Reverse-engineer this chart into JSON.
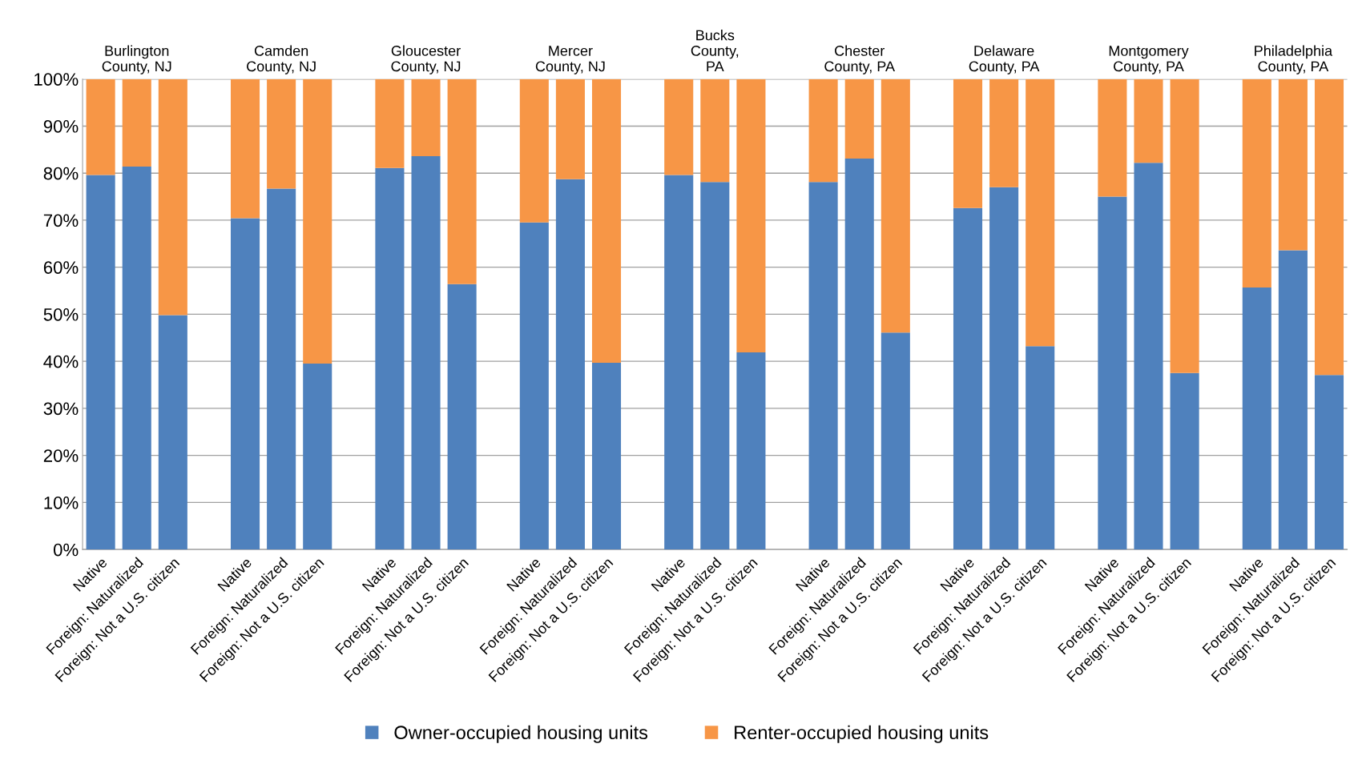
{
  "chart_data": {
    "type": "bar",
    "stacked": true,
    "categories": [
      "Native",
      "Foreign: Naturalized",
      "Foreign: Not a U.S. citizen",
      null,
      "Native",
      "Foreign: Naturalized",
      "Foreign: Not a U.S. citizen",
      null,
      "Native",
      "Foreign: Naturalized",
      "Foreign: Not a U.S. citizen",
      null,
      "Native",
      "Foreign: Naturalized",
      "Foreign: Not a U.S. citizen",
      null,
      "Native",
      "Foreign: Naturalized",
      "Foreign: Not a U.S. citizen",
      null,
      "Native",
      "Foreign: Naturalized",
      "Foreign: Not a U.S. citizen",
      null,
      "Native",
      "Foreign: Naturalized",
      "Foreign: Not a U.S. citizen",
      null,
      "Native",
      "Foreign: Naturalized",
      "Foreign: Not a U.S. citizen",
      null,
      "Native",
      "Foreign: Naturalized",
      "Foreign: Not a U.S. citizen"
    ],
    "series": [
      {
        "name": "Owner-occupied housing units",
        "color": "#4f81bd",
        "values": [
          79.6,
          81.4,
          49.8,
          null,
          70.4,
          76.7,
          39.5,
          null,
          81.1,
          83.6,
          56.4,
          null,
          69.5,
          78.7,
          39.7,
          null,
          79.6,
          78.1,
          41.9,
          null,
          78.1,
          83.1,
          46.1,
          null,
          72.6,
          77.0,
          43.2,
          null,
          75.0,
          82.2,
          37.5,
          null,
          55.7,
          63.6,
          37.1
        ]
      },
      {
        "name": "Renter-occupied housing units",
        "color": "#f79646",
        "values": [
          20.4,
          18.6,
          50.2,
          null,
          29.6,
          23.3,
          60.5,
          null,
          18.9,
          16.4,
          43.6,
          null,
          30.5,
          21.3,
          60.3,
          null,
          20.4,
          21.9,
          58.1,
          null,
          21.9,
          16.9,
          53.9,
          null,
          27.4,
          23.0,
          56.8,
          null,
          25.0,
          17.8,
          62.5,
          null,
          44.3,
          36.4,
          62.9
        ]
      }
    ],
    "annotations": [
      "Burlington\nCounty, NJ",
      "Camden\nCounty, NJ",
      "Gloucester\nCounty, NJ",
      "Mercer\nCounty, NJ",
      "Bucks\nCounty,\nPA",
      "Chester\nCounty, PA",
      "Delaware\nCounty, PA",
      "Montgomery\nCounty, PA",
      "Philadelphia\nCounty, PA"
    ],
    "ylim": [
      0,
      100
    ],
    "yticks": [
      {
        "value": 0,
        "label": "0%"
      },
      {
        "value": 10,
        "label": "10%"
      },
      {
        "value": 20,
        "label": "20%"
      },
      {
        "value": 30,
        "label": "30%"
      },
      {
        "value": 40,
        "label": "40%"
      },
      {
        "value": 50,
        "label": "50%"
      },
      {
        "value": 60,
        "label": "60%"
      },
      {
        "value": 70,
        "label": "70%"
      },
      {
        "value": 80,
        "label": "80%"
      },
      {
        "value": 90,
        "label": "90%"
      },
      {
        "value": 100,
        "label": "100%"
      }
    ],
    "grid": "y",
    "legend": "bottom"
  }
}
